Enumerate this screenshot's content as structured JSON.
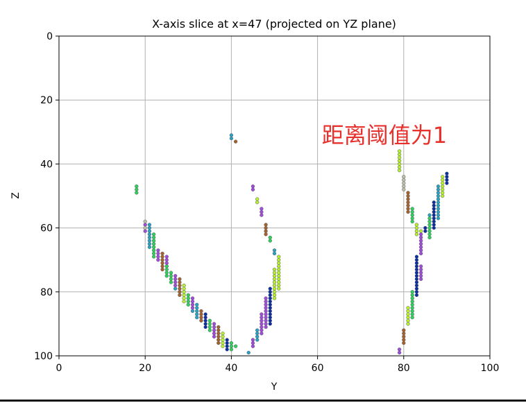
{
  "chart_data": {
    "type": "scatter",
    "title": "X-axis slice at x=47 (projected on YZ plane)",
    "xlabel": "Y",
    "ylabel": "Z",
    "xlim": [
      0,
      100
    ],
    "ylim": [
      100,
      0
    ],
    "y_inverted": true,
    "grid": true,
    "x_ticks": [
      0,
      20,
      40,
      60,
      80,
      100
    ],
    "y_ticks": [
      0,
      20,
      40,
      60,
      80,
      100
    ],
    "annotation": {
      "text": "距离阈值为1",
      "x": 61,
      "y": 31,
      "color": "#e8302c"
    },
    "point_colors": [
      "#a04cd8",
      "#b8f030",
      "#30d05a",
      "#0b2fa0",
      "#2aa3c0",
      "#a4632a",
      "#bfbfa6"
    ],
    "points": [
      [
        18,
        47,
        2
      ],
      [
        18,
        48,
        2
      ],
      [
        18,
        49,
        2
      ],
      [
        20,
        58,
        6
      ],
      [
        20,
        59,
        0
      ],
      [
        20,
        60,
        6
      ],
      [
        20,
        61,
        0
      ],
      [
        21,
        59,
        4
      ],
      [
        21,
        60,
        4
      ],
      [
        21,
        61,
        4
      ],
      [
        21,
        62,
        4
      ],
      [
        21,
        63,
        4
      ],
      [
        21,
        64,
        4
      ],
      [
        21,
        65,
        4
      ],
      [
        21,
        66,
        4
      ],
      [
        22,
        62,
        2
      ],
      [
        22,
        63,
        2
      ],
      [
        22,
        64,
        2
      ],
      [
        22,
        65,
        2
      ],
      [
        22,
        66,
        2
      ],
      [
        22,
        67,
        2
      ],
      [
        22,
        68,
        2
      ],
      [
        22,
        69,
        2
      ],
      [
        23,
        67,
        0
      ],
      [
        23,
        68,
        0
      ],
      [
        23,
        69,
        0
      ],
      [
        23,
        70,
        0
      ],
      [
        24,
        68,
        5
      ],
      [
        24,
        69,
        5
      ],
      [
        24,
        70,
        5
      ],
      [
        24,
        71,
        5
      ],
      [
        24,
        72,
        5
      ],
      [
        24,
        73,
        5
      ],
      [
        25,
        69,
        0
      ],
      [
        25,
        70,
        0
      ],
      [
        25,
        71,
        0
      ],
      [
        25,
        72,
        0
      ],
      [
        25,
        72,
        2
      ],
      [
        25,
        73,
        2
      ],
      [
        25,
        74,
        2
      ],
      [
        25,
        75,
        2
      ],
      [
        26,
        74,
        2
      ],
      [
        26,
        75,
        2
      ],
      [
        26,
        76,
        2
      ],
      [
        26,
        77,
        2
      ],
      [
        27,
        75,
        0
      ],
      [
        27,
        76,
        0
      ],
      [
        27,
        77,
        0
      ],
      [
        27,
        78,
        0
      ],
      [
        27,
        79,
        4
      ],
      [
        28,
        76,
        5
      ],
      [
        28,
        77,
        5
      ],
      [
        28,
        78,
        5
      ],
      [
        28,
        79,
        5
      ],
      [
        28,
        80,
        5
      ],
      [
        28,
        81,
        5
      ],
      [
        29,
        78,
        1
      ],
      [
        29,
        79,
        1
      ],
      [
        29,
        80,
        1
      ],
      [
        29,
        81,
        1
      ],
      [
        29,
        82,
        1
      ],
      [
        29,
        83,
        1
      ],
      [
        30,
        81,
        2
      ],
      [
        30,
        82,
        2
      ],
      [
        30,
        83,
        2
      ],
      [
        30,
        84,
        2
      ],
      [
        31,
        82,
        0
      ],
      [
        31,
        83,
        0
      ],
      [
        31,
        84,
        0
      ],
      [
        31,
        85,
        0
      ],
      [
        31,
        86,
        4
      ],
      [
        32,
        84,
        4
      ],
      [
        32,
        85,
        4
      ],
      [
        32,
        86,
        4
      ],
      [
        32,
        87,
        4
      ],
      [
        32,
        88,
        4
      ],
      [
        33,
        86,
        5
      ],
      [
        33,
        87,
        5
      ],
      [
        33,
        88,
        5
      ],
      [
        33,
        89,
        5
      ],
      [
        34,
        87,
        3
      ],
      [
        34,
        88,
        3
      ],
      [
        34,
        89,
        3
      ],
      [
        34,
        90,
        3
      ],
      [
        34,
        91,
        3
      ],
      [
        35,
        89,
        2
      ],
      [
        35,
        90,
        2
      ],
      [
        35,
        91,
        2
      ],
      [
        35,
        92,
        2
      ],
      [
        36,
        90,
        0
      ],
      [
        36,
        91,
        0
      ],
      [
        36,
        92,
        0
      ],
      [
        36,
        93,
        0
      ],
      [
        36,
        94,
        0
      ],
      [
        37,
        91,
        5
      ],
      [
        37,
        92,
        5
      ],
      [
        37,
        93,
        5
      ],
      [
        37,
        94,
        5
      ],
      [
        37,
        95,
        5
      ],
      [
        37,
        96,
        5
      ],
      [
        38,
        93,
        1
      ],
      [
        38,
        94,
        1
      ],
      [
        38,
        95,
        1
      ],
      [
        38,
        96,
        1
      ],
      [
        38,
        97,
        1
      ],
      [
        39,
        95,
        3
      ],
      [
        39,
        96,
        3
      ],
      [
        39,
        97,
        3
      ],
      [
        39,
        98,
        3
      ],
      [
        40,
        96,
        2
      ],
      [
        40,
        97,
        2
      ],
      [
        40,
        98,
        2
      ],
      [
        41,
        97,
        2
      ],
      [
        44,
        99,
        4
      ],
      [
        40,
        31,
        4
      ],
      [
        40,
        32,
        4
      ],
      [
        41,
        33,
        5
      ],
      [
        45,
        47,
        0
      ],
      [
        45,
        48,
        0
      ],
      [
        45,
        95,
        0
      ],
      [
        45,
        96,
        0
      ],
      [
        45,
        97,
        0
      ],
      [
        46,
        51,
        1
      ],
      [
        46,
        52,
        1
      ],
      [
        46,
        92,
        4
      ],
      [
        46,
        93,
        4
      ],
      [
        46,
        94,
        4
      ],
      [
        46,
        95,
        4
      ],
      [
        47,
        54,
        0
      ],
      [
        47,
        55,
        0
      ],
      [
        47,
        56,
        0
      ],
      [
        47,
        87,
        0
      ],
      [
        47,
        88,
        0
      ],
      [
        47,
        89,
        0
      ],
      [
        47,
        90,
        0
      ],
      [
        47,
        91,
        0
      ],
      [
        47,
        92,
        0
      ],
      [
        47,
        93,
        0
      ],
      [
        48,
        59,
        5
      ],
      [
        48,
        60,
        5
      ],
      [
        48,
        61,
        5
      ],
      [
        48,
        62,
        5
      ],
      [
        48,
        82,
        0
      ],
      [
        48,
        83,
        0
      ],
      [
        48,
        84,
        0
      ],
      [
        48,
        85,
        0
      ],
      [
        48,
        86,
        0
      ],
      [
        48,
        87,
        0
      ],
      [
        48,
        88,
        0
      ],
      [
        48,
        89,
        0
      ],
      [
        48,
        90,
        0
      ],
      [
        48,
        91,
        0
      ],
      [
        49,
        63,
        2
      ],
      [
        49,
        64,
        2
      ],
      [
        49,
        79,
        3
      ],
      [
        49,
        80,
        3
      ],
      [
        49,
        81,
        3
      ],
      [
        49,
        82,
        3
      ],
      [
        49,
        83,
        3
      ],
      [
        49,
        84,
        3
      ],
      [
        49,
        85,
        3
      ],
      [
        49,
        86,
        3
      ],
      [
        49,
        87,
        3
      ],
      [
        49,
        88,
        3
      ],
      [
        49,
        89,
        3
      ],
      [
        49,
        90,
        3
      ],
      [
        50,
        67,
        4
      ],
      [
        50,
        68,
        4
      ],
      [
        50,
        73,
        1
      ],
      [
        50,
        74,
        1
      ],
      [
        50,
        75,
        1
      ],
      [
        50,
        76,
        1
      ],
      [
        50,
        77,
        1
      ],
      [
        50,
        78,
        1
      ],
      [
        50,
        79,
        1
      ],
      [
        50,
        80,
        1
      ],
      [
        50,
        81,
        1
      ],
      [
        50,
        82,
        1
      ],
      [
        51,
        69,
        1
      ],
      [
        51,
        70,
        1
      ],
      [
        51,
        71,
        1
      ],
      [
        51,
        72,
        1
      ],
      [
        51,
        73,
        1
      ],
      [
        51,
        74,
        1
      ],
      [
        51,
        75,
        1
      ],
      [
        51,
        76,
        1
      ],
      [
        51,
        77,
        1
      ],
      [
        51,
        78,
        1
      ],
      [
        51,
        79,
        1
      ],
      [
        79,
        36,
        1
      ],
      [
        79,
        37,
        1
      ],
      [
        79,
        38,
        1
      ],
      [
        79,
        39,
        1
      ],
      [
        79,
        40,
        1
      ],
      [
        79,
        41,
        1
      ],
      [
        79,
        42,
        1
      ],
      [
        79,
        98,
        0
      ],
      [
        79,
        99,
        0
      ],
      [
        80,
        44,
        6
      ],
      [
        80,
        45,
        6
      ],
      [
        80,
        46,
        6
      ],
      [
        80,
        47,
        6
      ],
      [
        80,
        48,
        6
      ],
      [
        80,
        92,
        5
      ],
      [
        80,
        93,
        5
      ],
      [
        80,
        94,
        5
      ],
      [
        80,
        95,
        5
      ],
      [
        80,
        96,
        5
      ],
      [
        81,
        49,
        5
      ],
      [
        81,
        50,
        5
      ],
      [
        81,
        51,
        5
      ],
      [
        81,
        52,
        5
      ],
      [
        81,
        53,
        5
      ],
      [
        81,
        54,
        5
      ],
      [
        81,
        55,
        5
      ],
      [
        81,
        85,
        1
      ],
      [
        81,
        86,
        1
      ],
      [
        81,
        87,
        1
      ],
      [
        81,
        88,
        1
      ],
      [
        81,
        89,
        1
      ],
      [
        81,
        90,
        1
      ],
      [
        82,
        54,
        2
      ],
      [
        82,
        55,
        2
      ],
      [
        82,
        56,
        2
      ],
      [
        82,
        57,
        2
      ],
      [
        82,
        58,
        2
      ],
      [
        82,
        80,
        2
      ],
      [
        82,
        81,
        2
      ],
      [
        82,
        82,
        2
      ],
      [
        82,
        83,
        2
      ],
      [
        82,
        84,
        2
      ],
      [
        82,
        85,
        2
      ],
      [
        82,
        86,
        2
      ],
      [
        82,
        87,
        2
      ],
      [
        82,
        88,
        2
      ],
      [
        83,
        59,
        1
      ],
      [
        83,
        60,
        1
      ],
      [
        83,
        61,
        1
      ],
      [
        83,
        62,
        1
      ],
      [
        83,
        69,
        3
      ],
      [
        83,
        70,
        3
      ],
      [
        83,
        71,
        3
      ],
      [
        83,
        72,
        3
      ],
      [
        83,
        73,
        3
      ],
      [
        83,
        74,
        3
      ],
      [
        83,
        75,
        3
      ],
      [
        83,
        76,
        3
      ],
      [
        83,
        77,
        3
      ],
      [
        83,
        78,
        3
      ],
      [
        83,
        79,
        3
      ],
      [
        83,
        80,
        3
      ],
      [
        83,
        81,
        3
      ],
      [
        84,
        61,
        1
      ],
      [
        84,
        62,
        0
      ],
      [
        84,
        63,
        0
      ],
      [
        84,
        64,
        0
      ],
      [
        84,
        65,
        0
      ],
      [
        84,
        66,
        0
      ],
      [
        84,
        67,
        0
      ],
      [
        84,
        68,
        0
      ],
      [
        84,
        72,
        0
      ],
      [
        84,
        73,
        0
      ],
      [
        84,
        74,
        0
      ],
      [
        84,
        75,
        0
      ],
      [
        84,
        76,
        0
      ],
      [
        85,
        60,
        3
      ],
      [
        85,
        61,
        3
      ],
      [
        86,
        57,
        2
      ],
      [
        86,
        58,
        2
      ],
      [
        86,
        59,
        2
      ],
      [
        86,
        60,
        2
      ],
      [
        86,
        61,
        2
      ],
      [
        86,
        62,
        2
      ],
      [
        86,
        63,
        2
      ],
      [
        86,
        56,
        4
      ],
      [
        87,
        52,
        3
      ],
      [
        87,
        53,
        3
      ],
      [
        87,
        54,
        3
      ],
      [
        87,
        55,
        3
      ],
      [
        87,
        56,
        3
      ],
      [
        87,
        57,
        3
      ],
      [
        87,
        58,
        3
      ],
      [
        87,
        59,
        3
      ],
      [
        87,
        60,
        3
      ],
      [
        88,
        47,
        4
      ],
      [
        88,
        48,
        4
      ],
      [
        88,
        49,
        4
      ],
      [
        88,
        50,
        4
      ],
      [
        88,
        51,
        4
      ],
      [
        88,
        52,
        4
      ],
      [
        88,
        53,
        4
      ],
      [
        88,
        54,
        4
      ],
      [
        88,
        55,
        4
      ],
      [
        88,
        56,
        4
      ],
      [
        88,
        57,
        4
      ],
      [
        89,
        44,
        1
      ],
      [
        89,
        45,
        1
      ],
      [
        89,
        46,
        1
      ],
      [
        89,
        47,
        1
      ],
      [
        89,
        48,
        1
      ],
      [
        89,
        49,
        1
      ],
      [
        89,
        50,
        1
      ],
      [
        90,
        43,
        3
      ],
      [
        90,
        44,
        3
      ],
      [
        90,
        45,
        3
      ],
      [
        90,
        46,
        3
      ]
    ]
  }
}
